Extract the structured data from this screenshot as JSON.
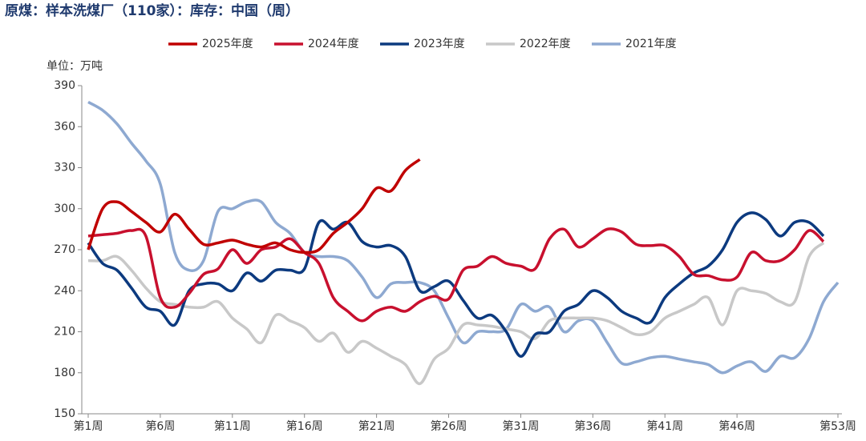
{
  "chart_data": {
    "type": "line",
    "title": "原煤：样本洗煤厂（110家）：库存：中国（周）",
    "y_label": "单位：万吨",
    "categories": [
      "第1周",
      null,
      null,
      null,
      null,
      "第6周",
      null,
      null,
      null,
      null,
      "第11周",
      null,
      null,
      null,
      null,
      "第16周",
      null,
      null,
      null,
      null,
      "第21周",
      null,
      null,
      null,
      null,
      "第26周",
      null,
      null,
      null,
      null,
      "第31周",
      null,
      null,
      null,
      null,
      "第36周",
      null,
      null,
      null,
      null,
      "第41周",
      null,
      null,
      null,
      null,
      "第46周",
      null,
      null,
      null,
      null,
      null,
      null,
      "第53周"
    ],
    "ylim": [
      150,
      390
    ],
    "yticks": [
      150,
      180,
      210,
      240,
      270,
      300,
      330,
      360,
      390
    ],
    "grid": false,
    "legend": "top",
    "series": [
      {
        "name": "2025年度",
        "color": "#c00000",
        "values": [
          270,
          300,
          305,
          298,
          290,
          283,
          296,
          285,
          274,
          275,
          277,
          274,
          272,
          275,
          270,
          268,
          270,
          282,
          290,
          300,
          315,
          313,
          328,
          336,
          null,
          null,
          null,
          null,
          null,
          null,
          null,
          null,
          null,
          null,
          null,
          null,
          null,
          null,
          null,
          null,
          null,
          null,
          null,
          null,
          null,
          null,
          null,
          null,
          null,
          null,
          null,
          null,
          null
        ]
      },
      {
        "name": "2024年度",
        "color": "#c8102e",
        "values": [
          280,
          281,
          282,
          284,
          280,
          235,
          228,
          238,
          252,
          256,
          270,
          260,
          270,
          272,
          278,
          268,
          260,
          235,
          225,
          218,
          225,
          228,
          225,
          232,
          236,
          234,
          255,
          258,
          265,
          260,
          258,
          256,
          278,
          285,
          272,
          278,
          285,
          283,
          274,
          273,
          273,
          265,
          252,
          251,
          248,
          250,
          268,
          262,
          262,
          270,
          284,
          276,
          null
        ]
      },
      {
        "name": "2023年度",
        "color": "#0c3a7f",
        "values": [
          275,
          260,
          255,
          242,
          228,
          225,
          215,
          240,
          245,
          245,
          240,
          253,
          247,
          255,
          255,
          256,
          290,
          285,
          290,
          276,
          272,
          273,
          265,
          240,
          243,
          247,
          233,
          220,
          222,
          210,
          192,
          208,
          210,
          225,
          230,
          240,
          235,
          225,
          220,
          217,
          235,
          245,
          253,
          258,
          270,
          290,
          297,
          292,
          280,
          290,
          290,
          280,
          null
        ]
      },
      {
        "name": "2022年度",
        "color": "#c8c8c8",
        "values": [
          262,
          262,
          265,
          255,
          242,
          232,
          230,
          228,
          228,
          232,
          220,
          212,
          202,
          222,
          218,
          213,
          203,
          209,
          195,
          203,
          198,
          192,
          186,
          172,
          190,
          198,
          215,
          215,
          214,
          212,
          210,
          205,
          218,
          220,
          220,
          220,
          218,
          213,
          208,
          210,
          220,
          225,
          230,
          235,
          215,
          240,
          240,
          238,
          232,
          232,
          265,
          275,
          null
        ]
      },
      {
        "name": "2021年度",
        "color": "#8ea9d1",
        "values": [
          378,
          372,
          362,
          348,
          335,
          318,
          268,
          255,
          262,
          298,
          300,
          305,
          305,
          290,
          282,
          268,
          265,
          265,
          262,
          250,
          235,
          245,
          246,
          246,
          240,
          220,
          202,
          210,
          210,
          212,
          230,
          225,
          228,
          210,
          218,
          218,
          202,
          187,
          188,
          191,
          192,
          190,
          188,
          186,
          180,
          185,
          188,
          181,
          192,
          191,
          205,
          232,
          246
        ]
      }
    ]
  }
}
